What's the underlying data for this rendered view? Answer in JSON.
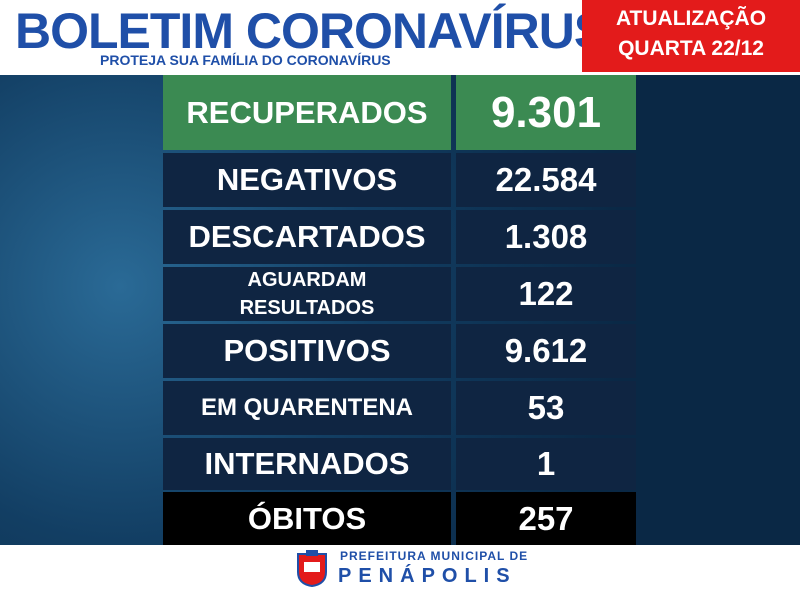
{
  "header": {
    "title": "BOLETIM CORONAVÍRUS",
    "subtitle": "PROTEJA SUA FAMÍLIA DO CORONAVÍRUS",
    "update_label": "ATUALIZAÇÃO",
    "update_date": "QUARTA 22/12"
  },
  "table": {
    "rows": [
      {
        "label": [
          "RECUPERADOS"
        ],
        "value": "9.301"
      },
      {
        "label": [
          "NEGATIVOS"
        ],
        "value": "22.584"
      },
      {
        "label": [
          "DESCARTADOS"
        ],
        "value": "1.308"
      },
      {
        "label": [
          "AGUARDAM",
          "RESULTADOS"
        ],
        "value": "122"
      },
      {
        "label": [
          "POSITIVOS"
        ],
        "value": "9.612"
      },
      {
        "label": [
          "EM QUARENTENA"
        ],
        "value": "53"
      },
      {
        "label": [
          "INTERNADOS"
        ],
        "value": "1"
      },
      {
        "label": [
          "ÓBITOS"
        ],
        "value": "257"
      }
    ]
  },
  "footer": {
    "line1": "PREFEITURA MUNICIPAL DE",
    "line2": "PENÁPOLIS"
  }
}
